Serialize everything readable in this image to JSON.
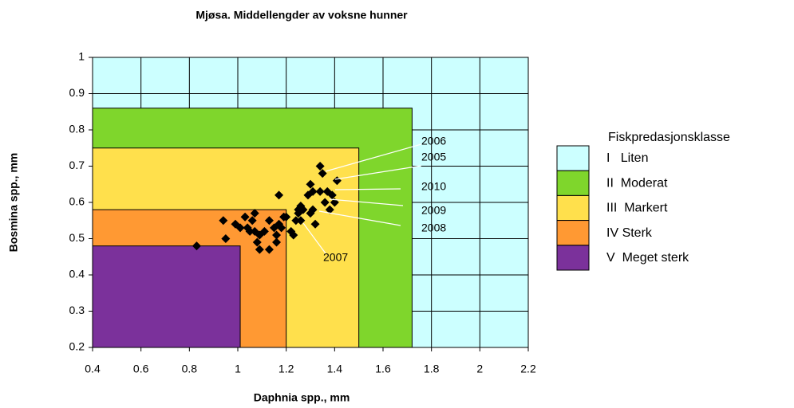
{
  "chart_data": {
    "type": "scatter",
    "title": "Mjøsa. Middellengder av voksne hunner",
    "xlabel": "Daphnia spp., mm",
    "ylabel": "Bosmina spp., mm",
    "xlim": [
      0.4,
      2.2
    ],
    "xticks": [
      0.4,
      0.6,
      0.8,
      1,
      1.2,
      1.4,
      1.6,
      1.8,
      2,
      2.2
    ],
    "ylim": [
      0.2,
      1
    ],
    "yticks": [
      0.2,
      0.3,
      0.4,
      0.5,
      0.6,
      0.7,
      0.8,
      0.9,
      1
    ],
    "grid": true,
    "color": "#000000",
    "legend_title": "Fiskpredasjonsklasse",
    "regions": [
      {
        "name": "I   Liten",
        "color": "#ccffff",
        "x": 2.2,
        "y": 1
      },
      {
        "name": "II  Moderat",
        "color": "#7fd62c",
        "x": 1.72,
        "y": 0.86
      },
      {
        "name": "III  Markert",
        "color": "#ffe04c",
        "x": 1.5,
        "y": 0.75
      },
      {
        "name": "IV Sterk",
        "color": "#ff9933",
        "x": 1.2,
        "y": 0.58
      },
      {
        "name": "V  Meget sterk",
        "color": "#7b319b",
        "x": 1.01,
        "y": 0.48
      }
    ],
    "x": [
      0.83,
      0.94,
      0.95,
      0.99,
      1.01,
      1.03,
      1.04,
      1.06,
      1.07,
      1.05,
      1.07,
      1.08,
      1.09,
      1.09,
      1.11,
      1.13,
      1.13,
      1.15,
      1.16,
      1.16,
      1.17,
      1.18,
      1.19,
      1.17,
      1.2,
      1.22,
      1.23,
      1.24,
      1.25,
      1.25,
      1.26,
      1.27,
      1.29,
      1.3,
      1.31,
      1.31,
      1.32,
      1.34,
      1.35,
      1.34,
      1.36,
      1.37,
      1.38,
      1.39,
      1.4,
      1.41,
      1.26,
      1.3
    ],
    "values": [
      0.48,
      0.55,
      0.5,
      0.54,
      0.53,
      0.56,
      0.53,
      0.55,
      0.57,
      0.52,
      0.52,
      0.49,
      0.51,
      0.47,
      0.52,
      0.47,
      0.55,
      0.53,
      0.49,
      0.51,
      0.54,
      0.53,
      0.56,
      0.62,
      0.56,
      0.52,
      0.51,
      0.55,
      0.58,
      0.57,
      0.55,
      0.58,
      0.62,
      0.65,
      0.63,
      0.58,
      0.54,
      0.7,
      0.68,
      0.63,
      0.6,
      0.63,
      0.58,
      0.62,
      0.6,
      0.66,
      0.59,
      0.57
    ],
    "annotations": [
      "2006",
      "2005",
      "2010",
      "2009",
      "2008",
      "2007"
    ]
  }
}
